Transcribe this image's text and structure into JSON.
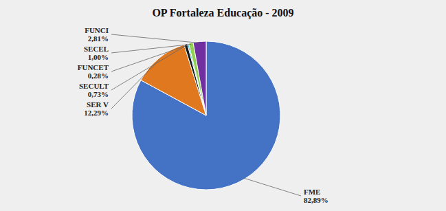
{
  "chart_data": {
    "type": "pie",
    "title": "OP Fortaleza Educação - 2009",
    "categories": [
      "FME",
      "SER V",
      "SECULT",
      "FUNCET",
      "SECEL",
      "FUNCI"
    ],
    "values": [
      82.89,
      12.29,
      0.73,
      0.28,
      1.0,
      2.81
    ],
    "value_labels": [
      "82,89%",
      "12,29%",
      "0,73%",
      "0,28%",
      "1,00%",
      "2,81%"
    ],
    "colors": [
      "#4472C4",
      "#E07820",
      "#1A1A1A",
      "#00B0F0",
      "#92D050",
      "#7030A0"
    ],
    "data_labels": true
  }
}
